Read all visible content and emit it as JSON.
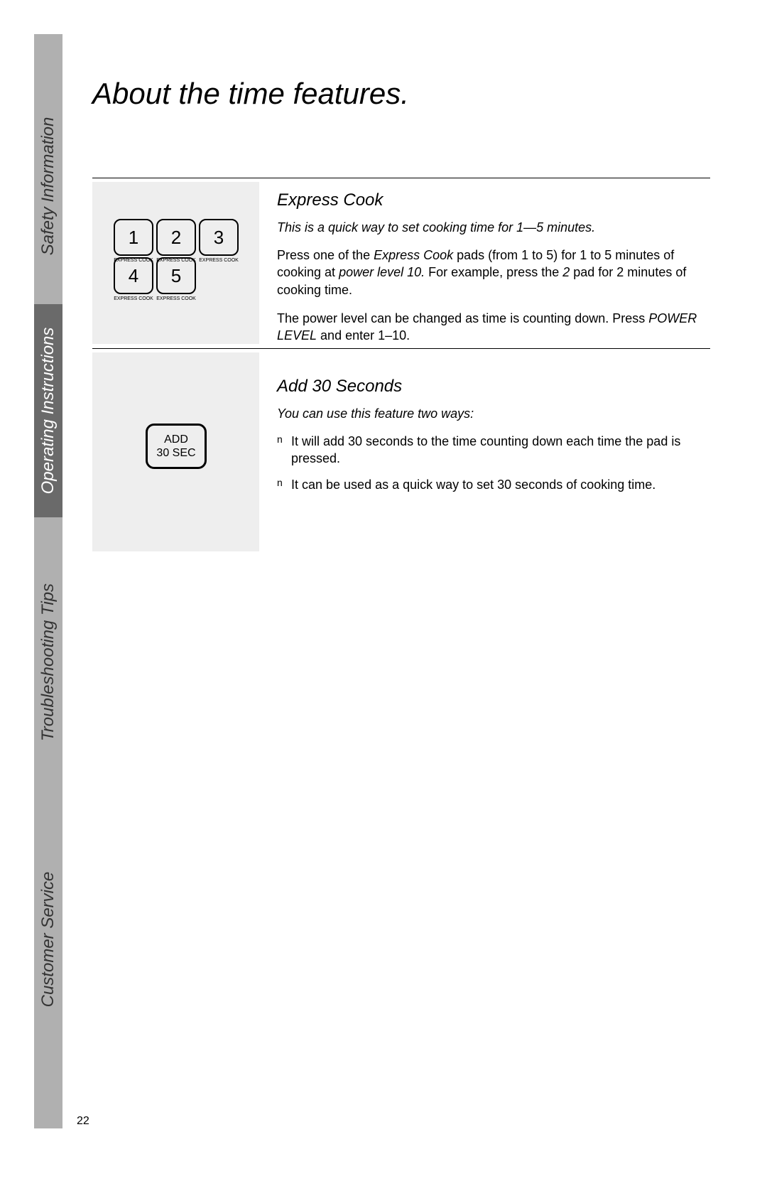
{
  "page_number": "22",
  "title": "About the time features.",
  "sidebar": {
    "safety": "Safety Information",
    "operating": "Operating Instructions",
    "troubleshooting": "Troubleshooting Tips",
    "customer": "Customer Service"
  },
  "express_cook": {
    "heading": "Express Cook",
    "intro": "This is a quick way to set cooking time for 1—5 minutes.",
    "para1_before": "Press one of the ",
    "para1_italic1": "Express Cook",
    "para1_mid": " pads (from 1 to 5) for 1 to 5 minutes of cooking at ",
    "para1_italic2": "power level 10.",
    "para1_end": " For example, press the ",
    "para1_italic3": "2",
    "para1_end2": " pad for 2 minutes of cooking time.",
    "para2_before": "The power level can be changed as time is counting down. Press ",
    "para2_italic": "POWER LEVEL",
    "para2_end": " and enter 1–10.",
    "keypad_numbers": [
      "1",
      "2",
      "3",
      "4",
      "5"
    ],
    "keypad_label": "EXPRESS COOK"
  },
  "add_30": {
    "heading": "Add 30 Seconds",
    "intro": "You can use this feature two ways:",
    "bullet1": "It will add 30 seconds to the time counting down each time the pad is pressed.",
    "bullet2": "It can be used as a quick way to set 30 seconds of cooking time.",
    "btn_line1": "ADD",
    "btn_line2": "30 SEC"
  }
}
